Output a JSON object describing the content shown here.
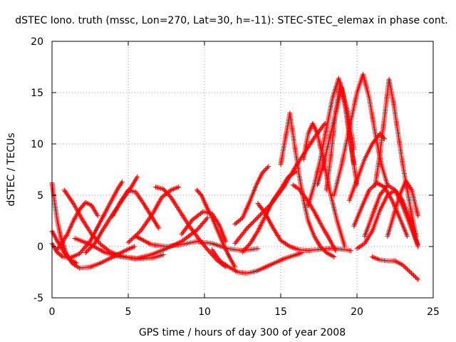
{
  "chart_data": {
    "type": "scatter",
    "title": "dSTEC Iono. truth (mssc, Lon=270, Lat=30, h=-11): STEC-STEC_elemax in phase cont.",
    "xlabel": "GPS time / hours of day 300 of year 2008",
    "ylabel": "dSTEC  / TECUs",
    "xlim": [
      0,
      25
    ],
    "ylim": [
      -5,
      20
    ],
    "xticks": [
      0,
      5,
      10,
      15,
      20,
      25
    ],
    "yticks": [
      -5,
      0,
      5,
      10,
      15,
      20
    ],
    "grid": true,
    "marker": "+",
    "series_color": "#ff0000",
    "series": [
      {
        "x": [
          0.0,
          0.4,
          0.8,
          1.2,
          1.6
        ],
        "y": [
          1.5,
          0.4,
          -0.6,
          -1.3,
          -1.6
        ]
      },
      {
        "x": [
          0.0,
          0.15,
          0.35,
          0.6,
          0.9,
          1.3,
          1.8,
          2.5,
          3.2,
          4.0,
          4.8,
          5.4
        ],
        "y": [
          6.2,
          4.5,
          2.5,
          0.8,
          -0.6,
          -1.6,
          -2.1,
          -2.0,
          -1.6,
          -1.0,
          -0.4,
          0.0
        ]
      },
      {
        "x": [
          0.3,
          0.6,
          1.0,
          1.4,
          1.8,
          2.2,
          2.6,
          3.0
        ],
        "y": [
          -0.3,
          0.2,
          1.2,
          2.5,
          3.6,
          4.3,
          4.0,
          3.0
        ]
      },
      {
        "x": [
          0.0,
          0.3,
          0.7,
          1.2,
          1.8,
          2.5,
          3.2,
          3.8,
          4.3,
          4.6
        ],
        "y": [
          0.3,
          -0.5,
          -1.0,
          -1.1,
          -0.7,
          0.5,
          2.5,
          4.2,
          5.6,
          6.3
        ]
      },
      {
        "x": [
          0.8,
          1.4,
          2.0,
          2.6,
          3.2,
          3.8,
          4.5,
          5.2,
          5.9,
          6.6,
          7.3
        ],
        "y": [
          5.5,
          4.2,
          2.6,
          1.2,
          0.2,
          -0.5,
          -0.9,
          -1.1,
          -1.2,
          -1.1,
          -0.8
        ]
      },
      {
        "x": [
          2.2,
          2.8,
          3.4,
          4.0,
          4.6,
          5.2,
          5.6
        ],
        "y": [
          -0.6,
          0.3,
          1.8,
          3.2,
          4.5,
          5.8,
          6.8
        ]
      },
      {
        "x": [
          4.0,
          4.5,
          5.0,
          5.5,
          6.0,
          6.5,
          7.0
        ],
        "y": [
          3.0,
          4.4,
          5.5,
          5.3,
          4.2,
          3.0,
          1.8
        ]
      },
      {
        "x": [
          1.5,
          2.5,
          3.5,
          4.5,
          5.5,
          6.5,
          7.5,
          8.5,
          9.5,
          10.2
        ],
        "y": [
          0.8,
          0.2,
          -0.6,
          -1.0,
          -1.2,
          -0.8,
          -0.2,
          0.5,
          1.6,
          2.8
        ]
      },
      {
        "x": [
          5.5,
          6.5,
          7.5,
          8.5,
          9.5,
          10.5,
          11.5,
          12.5,
          13.5
        ],
        "y": [
          1.0,
          0.2,
          0.0,
          0.2,
          0.5,
          0.3,
          -0.2,
          -0.4,
          -0.2
        ]
      },
      {
        "x": [
          5.0,
          5.8,
          6.6,
          7.2,
          7.8,
          8.3
        ],
        "y": [
          0.4,
          1.5,
          3.2,
          4.8,
          5.5,
          5.8
        ]
      },
      {
        "x": [
          6.8,
          7.3,
          7.8,
          8.4,
          9.0,
          9.6,
          10.2,
          10.8,
          11.4
        ],
        "y": [
          5.8,
          5.6,
          4.8,
          3.4,
          2.0,
          0.8,
          -0.3,
          -1.3,
          -2.0
        ]
      },
      {
        "x": [
          9.5,
          9.8,
          10.1,
          10.5,
          10.9,
          11.3,
          11.7,
          12.0
        ],
        "y": [
          5.5,
          5.0,
          4.0,
          2.8,
          1.4,
          0.0,
          -1.2,
          -2.0
        ]
      },
      {
        "x": [
          8.5,
          9.2,
          9.9,
          10.5,
          11.0,
          11.4
        ],
        "y": [
          1.2,
          2.6,
          3.4,
          3.2,
          2.0,
          0.5
        ]
      },
      {
        "x": [
          10.5,
          11.0,
          11.6,
          12.2,
          12.8,
          13.4,
          14.0,
          14.6,
          15.2,
          15.8,
          16.4
        ],
        "y": [
          -0.3,
          -1.4,
          -2.0,
          -2.5,
          -2.6,
          -2.4,
          -2.0,
          -1.6,
          -1.2,
          -0.9,
          -0.6
        ]
      },
      {
        "x": [
          12.0,
          12.5,
          13.0,
          13.4,
          13.8,
          14.2
        ],
        "y": [
          2.2,
          2.8,
          4.5,
          6.0,
          7.2,
          7.8
        ]
      },
      {
        "x": [
          12.5,
          13.0,
          13.5,
          14.0,
          14.5,
          15.0,
          15.5,
          16.0
        ],
        "y": [
          -0.5,
          0.3,
          1.5,
          3.0,
          4.5,
          5.6,
          6.8,
          7.3
        ]
      },
      {
        "x": [
          12.0,
          12.8,
          13.6,
          14.4,
          15.2,
          15.9,
          16.5,
          17.2,
          17.9
        ],
        "y": [
          0.3,
          1.8,
          3.0,
          4.2,
          5.8,
          7.6,
          9.0,
          10.6,
          12.0
        ]
      },
      {
        "x": [
          13.5,
          14.0,
          14.5,
          15.0,
          15.6,
          16.2,
          16.8,
          17.4,
          18.0,
          18.6,
          19.2,
          19.6
        ],
        "y": [
          4.2,
          3.2,
          1.8,
          0.6,
          0.0,
          -0.3,
          -0.4,
          -0.3,
          -0.2,
          -0.2,
          -0.3,
          -0.4
        ]
      },
      {
        "x": [
          15.0,
          15.3,
          15.6,
          15.9,
          16.2,
          16.5,
          16.8,
          17.2,
          17.6,
          18.0,
          18.5
        ],
        "y": [
          8.0,
          10.5,
          13.0,
          10.0,
          7.0,
          4.5,
          2.5,
          1.0,
          0.0,
          -0.6,
          -1.0
        ]
      },
      {
        "x": [
          15.8,
          16.2,
          16.7,
          17.2,
          17.7,
          18.2,
          18.6
        ],
        "y": [
          6.0,
          5.6,
          4.6,
          3.4,
          2.0,
          0.7,
          -0.4
        ]
      },
      {
        "x": [
          16.5,
          16.8,
          17.1,
          17.4,
          17.8,
          18.2,
          18.7,
          19.2
        ],
        "y": [
          8.5,
          11.0,
          12.0,
          11.0,
          8.5,
          5.5,
          2.5,
          0.0
        ]
      },
      {
        "x": [
          16.8,
          17.2,
          17.6,
          18.0,
          18.4,
          18.8,
          19.2,
          19.6,
          20.0
        ],
        "y": [
          4.0,
          6.0,
          8.5,
          11.5,
          14.5,
          16.4,
          14.0,
          10.0,
          6.0
        ]
      },
      {
        "x": [
          17.4,
          17.8,
          18.2,
          18.6,
          19.0,
          19.4,
          19.8
        ],
        "y": [
          6.0,
          8.0,
          10.5,
          13.0,
          15.5,
          13.0,
          9.5
        ]
      },
      {
        "x": [
          18.0,
          18.3,
          18.6,
          18.9,
          19.2,
          19.5,
          19.8
        ],
        "y": [
          5.5,
          9.0,
          13.0,
          16.0,
          14.0,
          11.0,
          8.0
        ]
      },
      {
        "x": [
          18.5,
          19.0,
          19.5,
          20.0,
          20.4,
          20.8,
          21.2,
          21.6,
          22.0
        ],
        "y": [
          5.0,
          8.0,
          11.5,
          15.0,
          16.8,
          14.5,
          11.0,
          8.0,
          6.0
        ]
      },
      {
        "x": [
          19.5,
          20.0,
          20.5,
          21.0,
          21.5,
          21.8
        ],
        "y": [
          4.5,
          6.5,
          8.5,
          10.0,
          11.0,
          10.5
        ]
      },
      {
        "x": [
          19.8,
          20.3,
          20.8,
          21.3,
          21.8,
          22.3,
          22.8,
          23.3
        ],
        "y": [
          2.0,
          3.8,
          5.5,
          6.2,
          5.8,
          4.5,
          2.8,
          1.0
        ]
      },
      {
        "x": [
          20.0,
          20.5,
          21.0,
          21.5,
          22.0,
          22.5,
          23.0,
          23.5,
          24.0
        ],
        "y": [
          -0.2,
          0.3,
          1.5,
          3.5,
          5.0,
          5.5,
          4.5,
          2.5,
          0.0
        ]
      },
      {
        "x": [
          20.5,
          21.0,
          21.5,
          22.0,
          22.5,
          23.0,
          23.5,
          24.0
        ],
        "y": [
          1.0,
          3.0,
          5.0,
          6.0,
          5.5,
          4.0,
          2.0,
          0.2
        ]
      },
      {
        "x": [
          21.2,
          21.5,
          21.8,
          22.1,
          22.4,
          22.7,
          23.0,
          23.3,
          23.6,
          23.9
        ],
        "y": [
          6.0,
          9.0,
          12.5,
          16.3,
          14.0,
          11.0,
          8.0,
          5.5,
          3.0,
          1.0
        ]
      },
      {
        "x": [
          21.0,
          21.5,
          22.0,
          22.5,
          23.0,
          23.5,
          24.0
        ],
        "y": [
          -1.0,
          -1.3,
          -1.4,
          -1.4,
          -1.8,
          -2.5,
          -3.2
        ]
      },
      {
        "x": [
          22.0,
          22.4,
          22.8,
          23.2,
          23.6,
          24.0
        ],
        "y": [
          1.0,
          3.0,
          5.0,
          6.4,
          5.5,
          3.0
        ]
      }
    ]
  }
}
